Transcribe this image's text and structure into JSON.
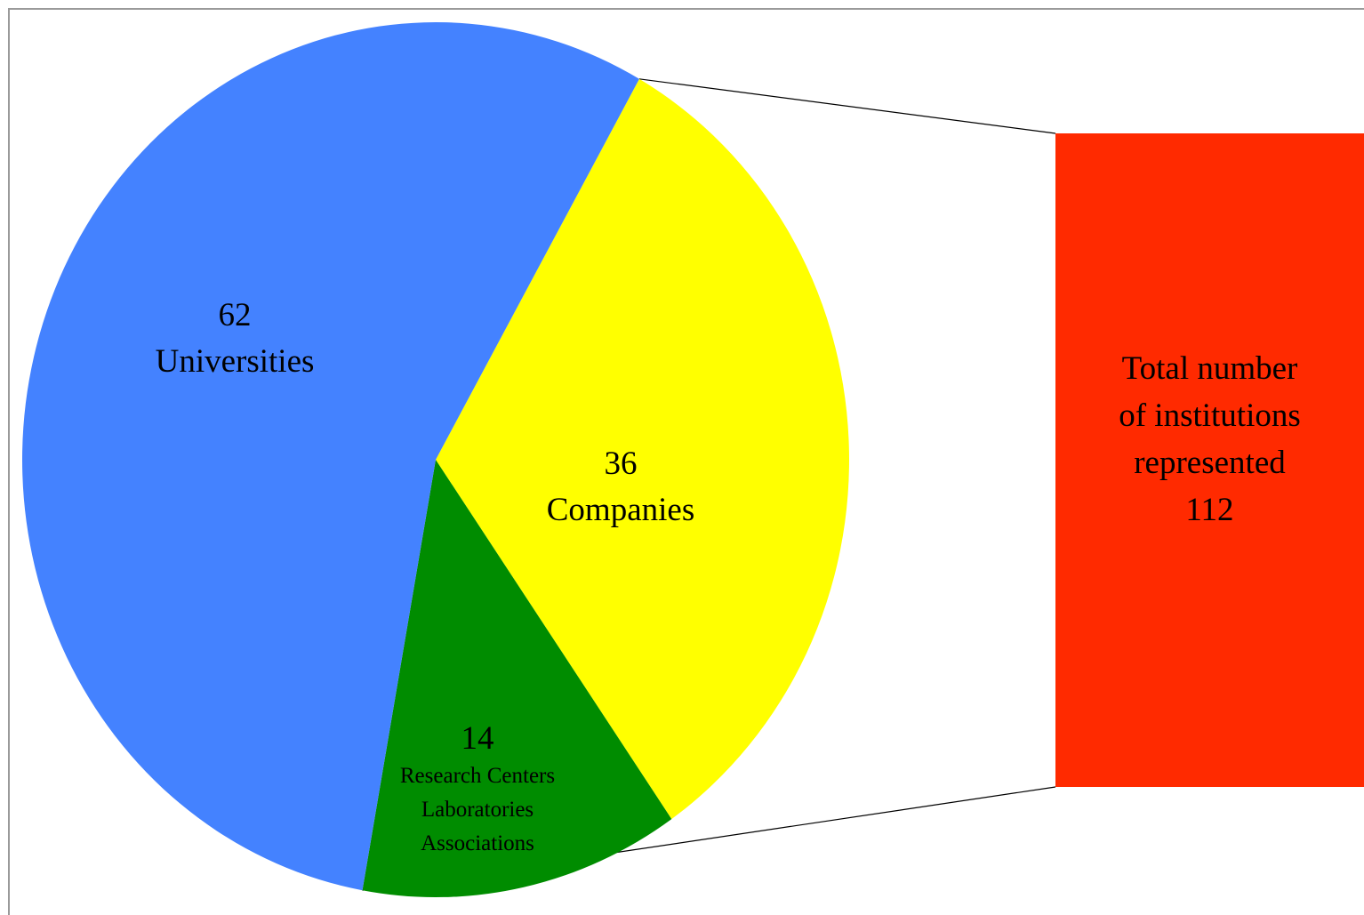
{
  "chart_data": {
    "type": "pie",
    "slices": [
      {
        "value": 62,
        "label_lines": [
          "Universities"
        ],
        "color": "#4482ff"
      },
      {
        "value": 36,
        "label_lines": [
          "Companies"
        ],
        "color": "#ffff00"
      },
      {
        "value": 14,
        "label_lines": [
          "Research Centers",
          "Laboratories",
          "Associations"
        ],
        "color": "#008c00"
      }
    ],
    "total": {
      "label_lines": [
        "Total number",
        "of institutions",
        "represented",
        "112"
      ],
      "color": "#ff2a00"
    },
    "legend": "none",
    "grid": false
  }
}
